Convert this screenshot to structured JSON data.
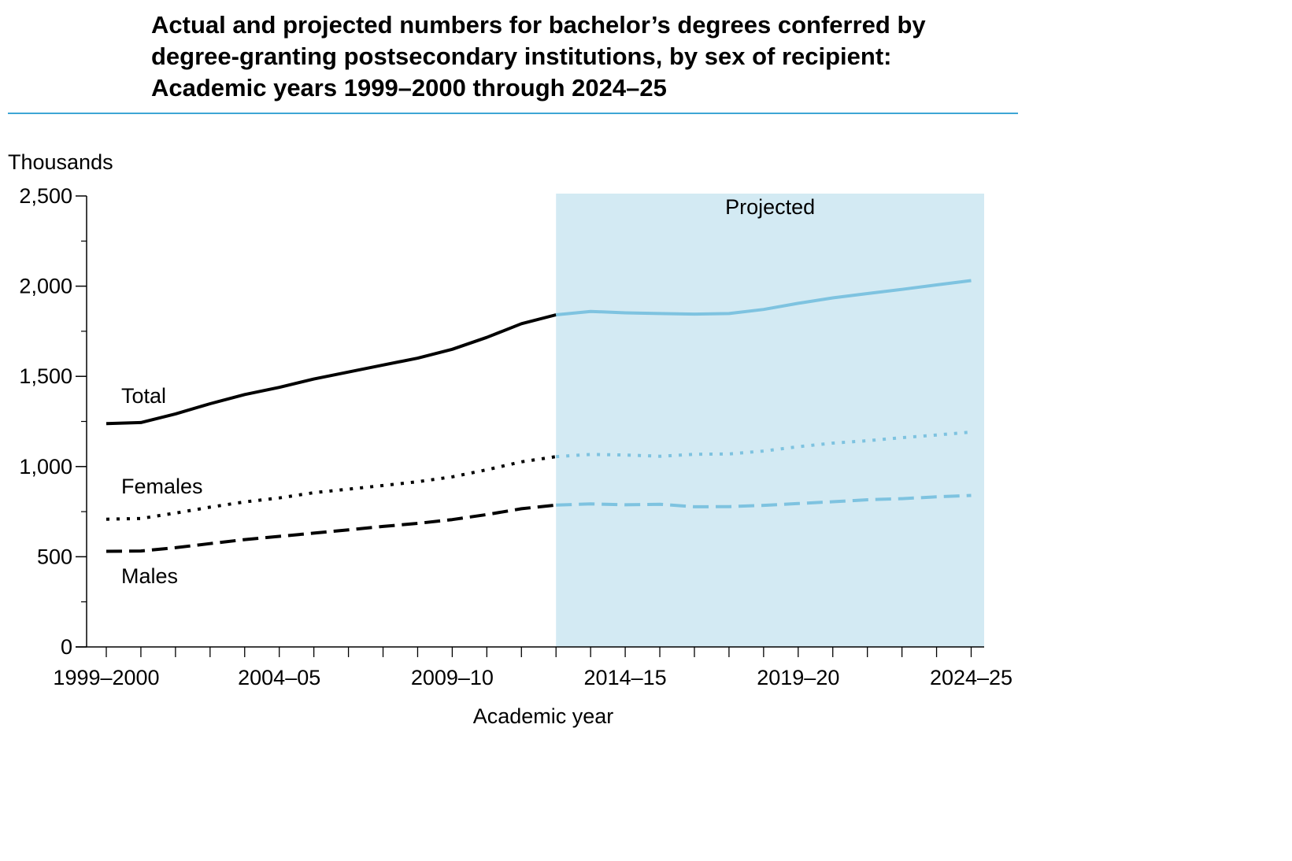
{
  "colors": {
    "actual": "#000000",
    "projected": "#7ec3e0",
    "projection_band": "#d3eaf3",
    "title_rule": "#3ea6d5"
  },
  "chart_data": {
    "type": "line",
    "title_lines": [
      "Actual and projected numbers for bachelor’s degrees conferred by",
      "degree-granting postsecondary institutions, by sex of recipient:",
      "Academic years 1999–2000 through 2024–25"
    ],
    "ylabel": "Thousands",
    "xlabel": "Academic year",
    "ylim": [
      0,
      2500
    ],
    "yticks": [
      0,
      500,
      1000,
      1500,
      2000,
      2500
    ],
    "ytick_labels": [
      "0",
      "500",
      "1,000",
      "1,500",
      "2,000",
      "2,500"
    ],
    "x_start_year": 1999,
    "x_end_year": 2024,
    "xtick_labels": [
      {
        "year": 1999,
        "label": "1999–2000"
      },
      {
        "year": 2004,
        "label": "2004–05"
      },
      {
        "year": 2009,
        "label": "2009–10"
      },
      {
        "year": 2014,
        "label": "2014–15"
      },
      {
        "year": 2019,
        "label": "2019–20"
      },
      {
        "year": 2024,
        "label": "2024–25"
      }
    ],
    "projected_label": "Projected",
    "projection_start_year": 2012,
    "grid": false,
    "series": [
      {
        "name": "Total",
        "style": "solid",
        "years": [
          1999,
          2000,
          2001,
          2002,
          2003,
          2004,
          2005,
          2006,
          2007,
          2008,
          2009,
          2010,
          2011,
          2012,
          2013,
          2014,
          2015,
          2016,
          2017,
          2018,
          2019,
          2020,
          2021,
          2022,
          2023,
          2024
        ],
        "values": [
          1238,
          1244,
          1292,
          1348,
          1399,
          1439,
          1485,
          1524,
          1563,
          1601,
          1650,
          1716,
          1792,
          1841,
          1860,
          1852,
          1848,
          1845,
          1848,
          1871,
          1905,
          1935,
          1959,
          1982,
          2007,
          2031
        ]
      },
      {
        "name": "Females",
        "style": "dotted",
        "years": [
          1999,
          2000,
          2001,
          2002,
          2003,
          2004,
          2005,
          2006,
          2007,
          2008,
          2009,
          2010,
          2011,
          2012,
          2013,
          2014,
          2015,
          2016,
          2017,
          2018,
          2019,
          2020,
          2021,
          2022,
          2023,
          2024
        ],
        "values": [
          708,
          712,
          742,
          775,
          804,
          826,
          855,
          875,
          895,
          916,
          943,
          982,
          1026,
          1055,
          1067,
          1064,
          1057,
          1068,
          1070,
          1086,
          1110,
          1130,
          1143,
          1160,
          1175,
          1191
        ]
      },
      {
        "name": "Males",
        "style": "dashed",
        "years": [
          1999,
          2000,
          2001,
          2002,
          2003,
          2004,
          2005,
          2006,
          2007,
          2008,
          2009,
          2010,
          2011,
          2012,
          2013,
          2014,
          2015,
          2016,
          2017,
          2018,
          2019,
          2020,
          2021,
          2022,
          2023,
          2024
        ],
        "values": [
          530,
          532,
          550,
          573,
          595,
          613,
          631,
          649,
          668,
          685,
          706,
          734,
          766,
          786,
          793,
          788,
          791,
          777,
          778,
          785,
          795,
          805,
          816,
          822,
          832,
          840
        ]
      }
    ]
  }
}
